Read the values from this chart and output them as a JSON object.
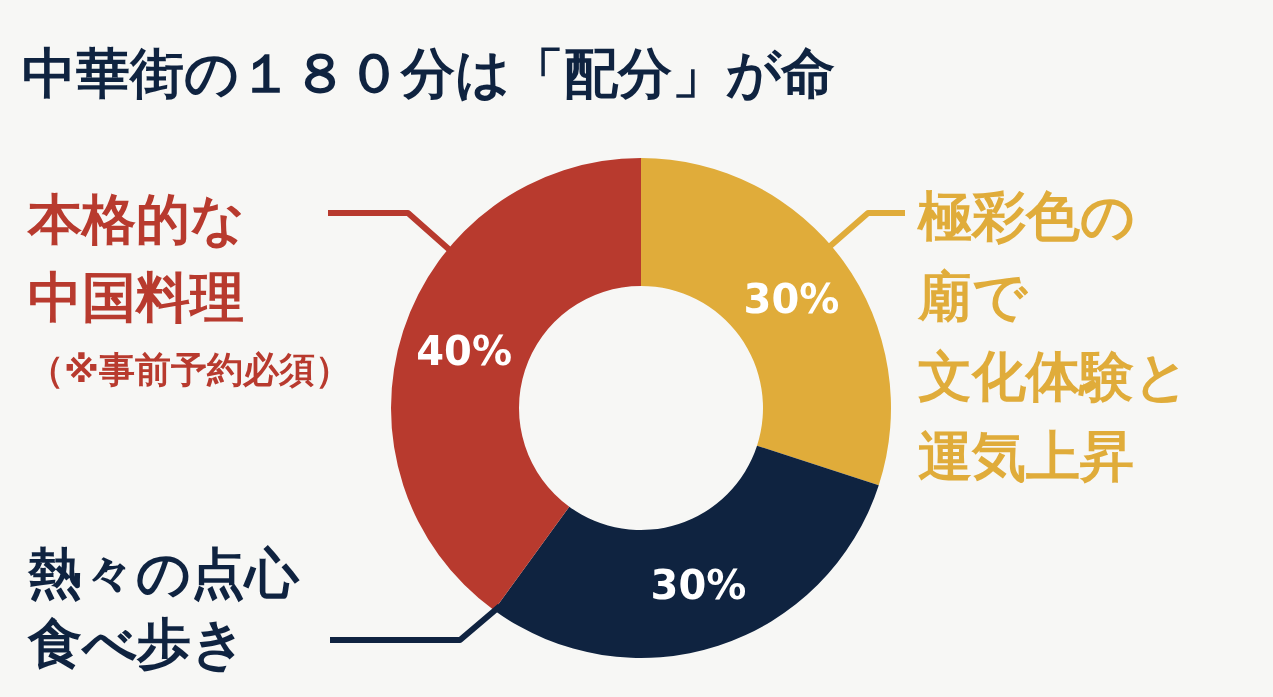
{
  "chart_data": {
    "type": "donut",
    "title": "中華街の１８０分は「配分」が命",
    "categories": [
      "極彩色の廟で文化体験と運気上昇",
      "熱々の点心食べ歩き",
      "本格的な中国料理（※事前予約必須）"
    ],
    "values": [
      30,
      30,
      40
    ],
    "colors": [
      "#e0ac3a",
      "#0f2340",
      "#b83a2e"
    ],
    "value_labels": [
      "30%",
      "30%",
      "40%"
    ]
  }
}
